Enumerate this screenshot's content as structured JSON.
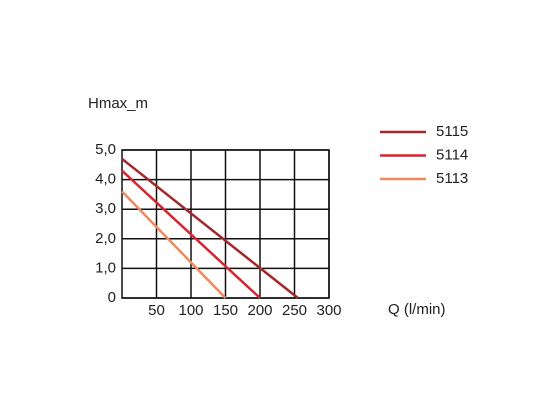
{
  "chart_data": {
    "type": "line",
    "y_label": "Hmax_m",
    "x_label": "Q (l/min)",
    "xlim": [
      0,
      300
    ],
    "xticks": [
      50,
      100,
      150,
      200,
      250,
      300
    ],
    "ylim": [
      0,
      5
    ],
    "yticks": [
      0,
      {
        "value": 1,
        "label": "1,0"
      },
      {
        "value": 2,
        "label": "2,0"
      },
      {
        "value": 3,
        "label": "3,0"
      },
      {
        "value": 4,
        "label": "4,0"
      },
      {
        "value": 5,
        "label": "5,0"
      }
    ],
    "grid": true,
    "series": [
      {
        "name": "5115",
        "color": "#a3282b",
        "x": [
          0,
          255
        ],
        "values": [
          4.7,
          0
        ]
      },
      {
        "name": "5114",
        "color": "#d9232d",
        "x": [
          0,
          200
        ],
        "values": [
          4.3,
          0
        ]
      },
      {
        "name": "5113",
        "color": "#f08a5d",
        "x": [
          0,
          150
        ],
        "values": [
          3.6,
          0
        ]
      }
    ]
  }
}
